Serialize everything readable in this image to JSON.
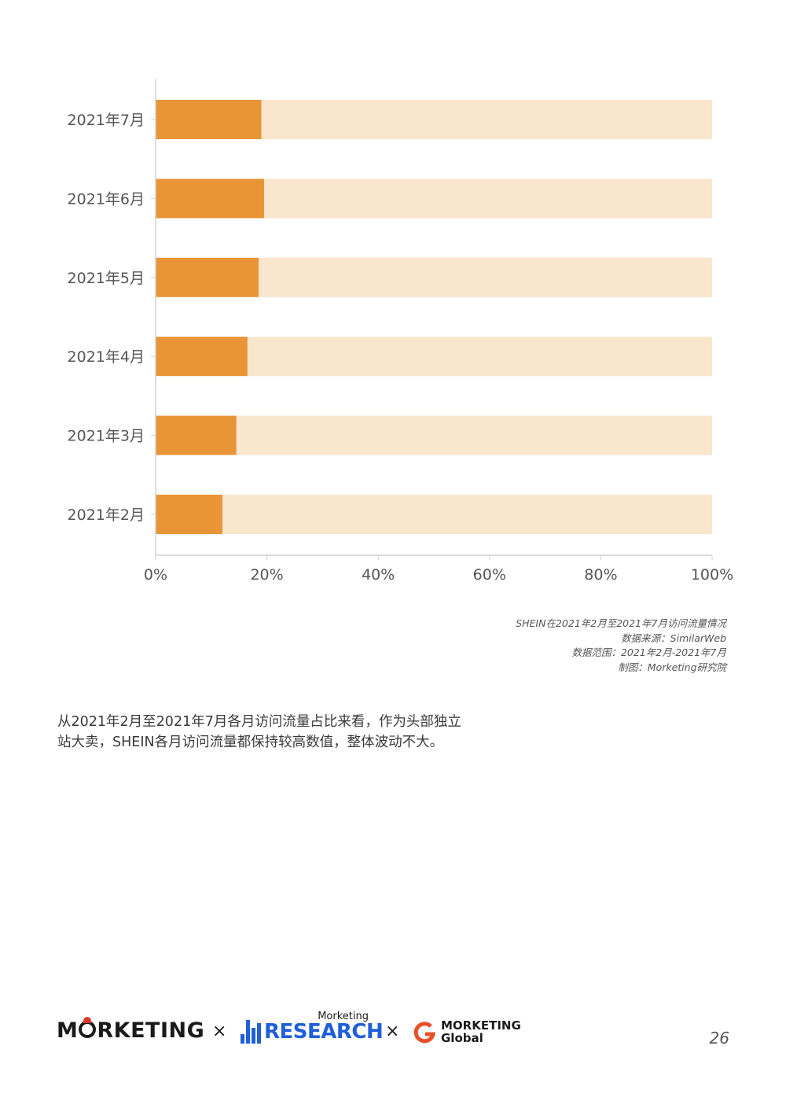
{
  "chart_data": {
    "type": "bar",
    "orientation": "horizontal",
    "stacked": true,
    "categories": [
      "2021年7月",
      "2021年6月",
      "2021年5月",
      "2021年4月",
      "2021年3月",
      "2021年2月"
    ],
    "series": [
      {
        "values": [
          19,
          19.5,
          18.5,
          16.5,
          14.5,
          12
        ]
      }
    ],
    "xlim": [
      0,
      100
    ],
    "xticks": [
      "0%",
      "20%",
      "40%",
      "60%",
      "80%",
      "100%"
    ],
    "title": "",
    "xlabel": "",
    "ylabel": "",
    "grid": false,
    "legend": "none",
    "colors": {
      "value_bar": "#e99537",
      "remainder_bar": "#fae6cd",
      "axis": "#d0d0d0",
      "tick_label": "#555555"
    }
  },
  "caption": {
    "line1": "SHEIN在2021年2月至2021年7月访问流量情况",
    "line2": "数据来源：SimilarWeb",
    "line3": "数据范围：2021年2月-2021年7月",
    "line4": "制图：Morketing研究院"
  },
  "body_text": "从2021年2月至2021年7月各月访问流量占比来看，作为头部独立站大卖，SHEIN各月访问流量都保持较高数值，整体波动不大。",
  "footer": {
    "logo1": {
      "pre": "M",
      "post": "RKETING"
    },
    "times1": "×",
    "logo2": {
      "small": "Morketing",
      "word": "RESEARCH"
    },
    "times2": "×",
    "logo3": {
      "line1": "MORKETING",
      "line2": "Global"
    },
    "page_number": "26"
  }
}
